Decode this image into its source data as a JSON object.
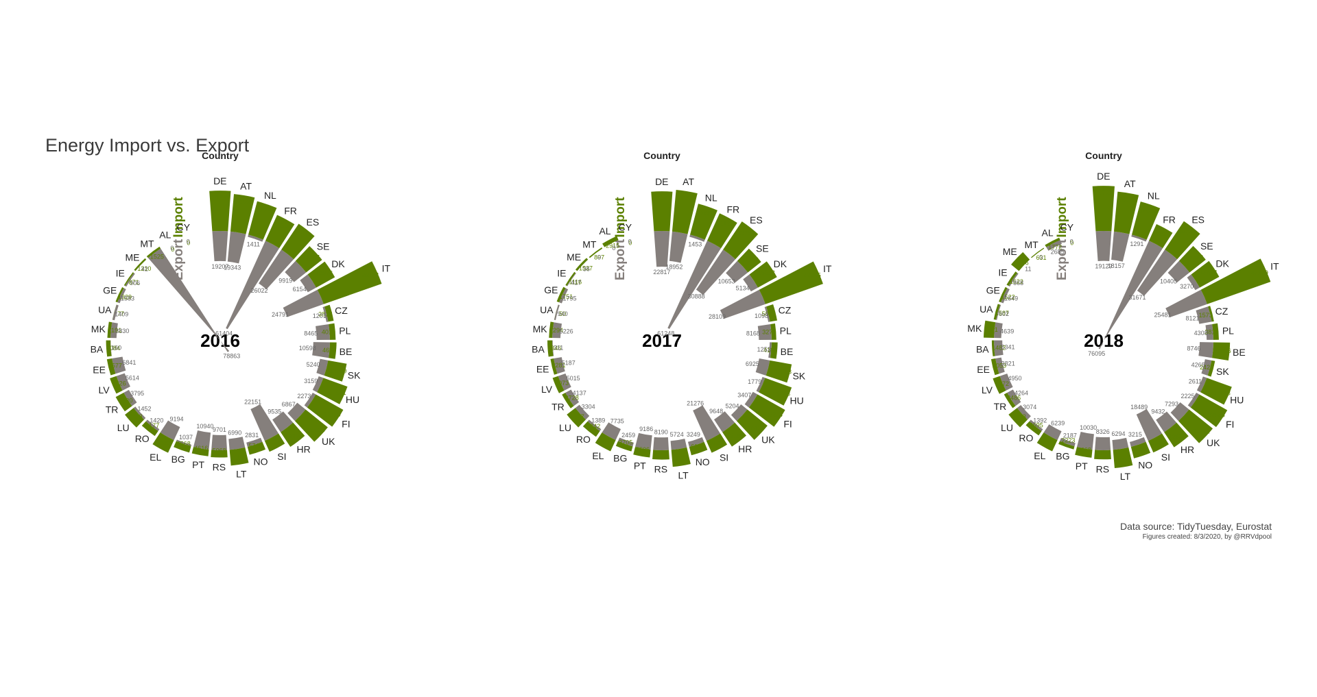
{
  "title": "Energy Import vs. Export",
  "caption": {
    "source": "Data source: TidyTuesday, Eurostat",
    "credit": "Figures created: 8/3/2020, by @RRVdpool"
  },
  "colors": {
    "import": "#5b8000",
    "export": "#857f7c",
    "country_text": "#222222"
  },
  "labels": {
    "country_header": "Country",
    "import": "Import",
    "export": "Export"
  },
  "chart_data": [
    {
      "type": "bar",
      "coordinate": "polar",
      "year_label": "2016",
      "categories": [
        "DE",
        "AT",
        "NL",
        "FR",
        "ES",
        "SE",
        "DK",
        "IT",
        "CZ",
        "PL",
        "BE",
        "SK",
        "HU",
        "FI",
        "UK",
        "HR",
        "SI",
        "NO",
        "LT",
        "RS",
        "PT",
        "BG",
        "EL",
        "RO",
        "LU",
        "TR",
        "LV",
        "EE",
        "BA",
        "MK",
        "UA",
        "GE",
        "IE",
        "ME",
        "MT",
        "AL",
        "CY"
      ],
      "series": [
        {
          "name": "Import",
          "values": [
            28338,
            26366,
            24258,
            19903,
            21845,
            14287,
            14976,
            43181,
            3817,
            4017,
            4648,
            13249,
            17951,
            22110,
            20018,
            12398,
            8359,
            5740,
            11106,
            5068,
            4616,
            4568,
            9833,
            4177,
            7718,
            6330,
            4826,
            3577,
            3084,
            2191,
            77,
            1329,
            871,
            1210,
            1525,
            0,
            0
          ]
        },
        {
          "name": "Export",
          "values": [
            19207,
            19343,
            1411,
            61404,
            26022,
            9919,
            6154,
            24791,
            1201,
            8465,
            10598,
            5240,
            3159,
            2273,
            6867,
            9535,
            22151,
            2831,
            6990,
            9701,
            10940,
            1037,
            9194,
            1420,
            1452,
            3795,
            5614,
            6841,
            160,
            3830,
            1409,
            1583,
            906,
            42,
            78863,
            0,
            0
          ]
        }
      ]
    },
    {
      "type": "bar",
      "coordinate": "polar",
      "year_label": "2017",
      "categories": [
        "DE",
        "AT",
        "NL",
        "FR",
        "ES",
        "SE",
        "DK",
        "IT",
        "CZ",
        "PL",
        "BE",
        "SK",
        "HU",
        "FI",
        "UK",
        "HR",
        "SI",
        "NO",
        "LT",
        "RS",
        "PT",
        "BG",
        "EL",
        "RO",
        "LU",
        "TR",
        "LV",
        "EE",
        "BA",
        "MK",
        "UA",
        "GE",
        "IE",
        "ME",
        "MT",
        "AL",
        "CY"
      ],
      "series": [
        {
          "name": "Import",
          "values": [
            27842,
            29362,
            22458,
            21134,
            23762,
            11896,
            15218,
            42895,
            5072,
            3271,
            4185,
            15563,
            19803,
            22204,
            18167,
            12158,
            9133,
            6111,
            11926,
            6549,
            5506,
            3705,
            8696,
            4842,
            7567,
            2728,
            4073,
            2281,
            3346,
            2294,
            50,
            1751,
            1116,
            1537,
            897,
            2915,
            0
          ]
        },
        {
          "name": "Export",
          "values": [
            22817,
            18952,
            1453,
            61248,
            30888,
            10653,
            5134,
            28109,
            1098,
            8168,
            1253,
            6925,
            1779,
            3407,
            5204,
            9648,
            21276,
            3249,
            5724,
            8190,
            9186,
            2459,
            7735,
            1389,
            3304,
            4137,
            5015,
            5187,
            311,
            5226,
            940,
            1795,
            417,
            36,
            0,
            0,
            0
          ]
        }
      ]
    },
    {
      "type": "bar",
      "coordinate": "polar",
      "year_label": "2018",
      "categories": [
        "DE",
        "AT",
        "NL",
        "FR",
        "ES",
        "SE",
        "DK",
        "IT",
        "CZ",
        "PL",
        "BE",
        "SK",
        "HU",
        "FI",
        "UK",
        "HR",
        "SI",
        "NO",
        "LT",
        "RS",
        "PT",
        "BG",
        "EL",
        "RO",
        "LU",
        "TR",
        "LV",
        "EE",
        "BA",
        "MK",
        "UA",
        "GE",
        "IE",
        "ME",
        "MT",
        "AL",
        "CY"
      ],
      "series": [
        {
          "name": "Import",
          "values": [
            31701,
            28076,
            24018,
            12826,
            24018,
            14442,
            15634,
            47179,
            1573,
            3816,
            11636,
            2427,
            18613,
            22548,
            21332,
            12692,
            8930,
            8340,
            12847,
            6400,
            5668,
            2223,
            8706,
            3695,
            7553,
            2486,
            5172,
            3053,
            1482,
            7261,
            1587,
            1522,
            1622,
            7106,
            631,
            1772,
            0
          ]
        },
        {
          "name": "Export",
          "values": [
            19129,
            18157,
            1291,
            76095,
            31671,
            10405,
            3270,
            25481,
            8121,
            4308,
            8746,
            4265,
            2611,
            2225,
            7293,
            9432,
            18489,
            3215,
            6294,
            8326,
            10030,
            2187,
            6239,
            1392,
            3074,
            4264,
            4950,
            3821,
            5341,
            4639,
            602,
            1649,
            868,
            11,
            0,
            2685,
            0
          ]
        }
      ]
    }
  ]
}
